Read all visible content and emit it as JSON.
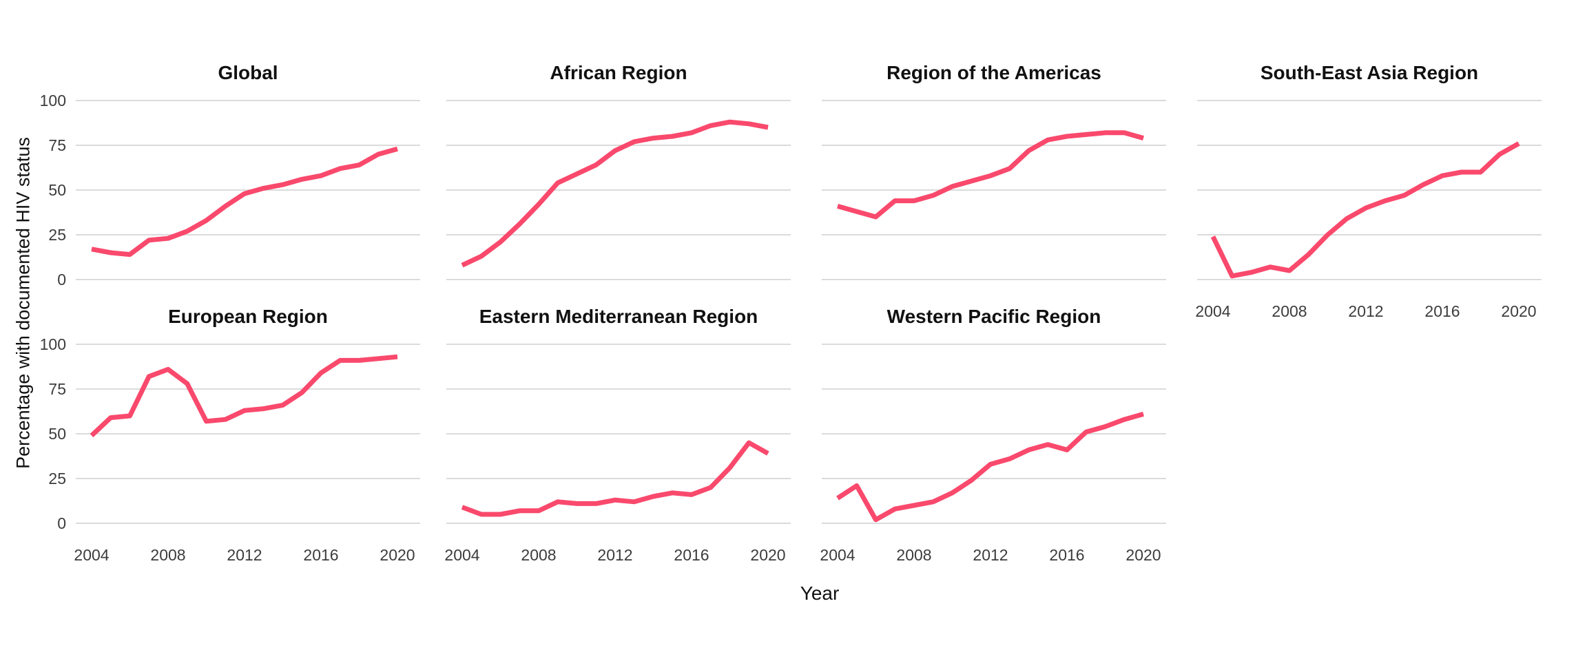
{
  "figure": {
    "background": "#ffffff"
  },
  "style": {
    "line_color": "#F9496C",
    "grid_color": "#DBDBDB",
    "title_color": "#111111",
    "tick_color": "#3c3c3c"
  },
  "axes": {
    "y_title": "Percentage with documented HIV status",
    "x_title": "Year",
    "y_ticks": [
      100,
      75,
      50,
      25,
      0
    ],
    "x_ticks": [
      2004,
      2008,
      2012,
      2016,
      2020
    ],
    "x_range": [
      2004,
      2020
    ],
    "y_range": [
      0,
      100
    ],
    "grid": "horizontal-only"
  },
  "chart_data": [
    {
      "type": "line",
      "title": "Global",
      "x": [
        2004,
        2005,
        2006,
        2007,
        2008,
        2009,
        2010,
        2011,
        2012,
        2013,
        2014,
        2015,
        2016,
        2017,
        2018,
        2019,
        2020
      ],
      "values": [
        17,
        15,
        14,
        22,
        23,
        27,
        33,
        41,
        48,
        51,
        53,
        56,
        58,
        62,
        64,
        70,
        73
      ]
    },
    {
      "type": "line",
      "title": "African Region",
      "x": [
        2004,
        2005,
        2006,
        2007,
        2008,
        2009,
        2010,
        2011,
        2012,
        2013,
        2014,
        2015,
        2016,
        2017,
        2018,
        2019,
        2020
      ],
      "values": [
        8,
        13,
        21,
        31,
        42,
        54,
        59,
        64,
        72,
        77,
        79,
        80,
        82,
        86,
        88,
        87,
        85
      ]
    },
    {
      "type": "line",
      "title": "Region of the Americas",
      "x": [
        2004,
        2005,
        2006,
        2007,
        2008,
        2009,
        2010,
        2011,
        2012,
        2013,
        2014,
        2015,
        2016,
        2017,
        2018,
        2019,
        2020
      ],
      "values": [
        41,
        38,
        35,
        44,
        44,
        47,
        52,
        55,
        58,
        62,
        72,
        78,
        80,
        81,
        82,
        82,
        79
      ]
    },
    {
      "type": "line",
      "title": "South-East Asia Region",
      "x": [
        2004,
        2005,
        2006,
        2007,
        2008,
        2009,
        2010,
        2011,
        2012,
        2013,
        2014,
        2015,
        2016,
        2017,
        2018,
        2019,
        2020
      ],
      "values": [
        24,
        2,
        4,
        7,
        5,
        14,
        25,
        34,
        40,
        44,
        47,
        53,
        58,
        60,
        60,
        70,
        76
      ]
    },
    {
      "type": "line",
      "title": "European Region",
      "x": [
        2004,
        2005,
        2006,
        2007,
        2008,
        2009,
        2010,
        2011,
        2012,
        2013,
        2014,
        2015,
        2016,
        2017,
        2018,
        2019,
        2020
      ],
      "values": [
        49,
        59,
        60,
        82,
        86,
        78,
        57,
        58,
        63,
        64,
        66,
        73,
        84,
        91,
        91,
        92,
        93
      ]
    },
    {
      "type": "line",
      "title": "Eastern Mediterranean Region",
      "x": [
        2004,
        2005,
        2006,
        2007,
        2008,
        2009,
        2010,
        2011,
        2012,
        2013,
        2014,
        2015,
        2016,
        2017,
        2018,
        2019,
        2020
      ],
      "values": [
        9,
        5,
        5,
        7,
        7,
        12,
        11,
        11,
        13,
        12,
        15,
        17,
        16,
        20,
        31,
        45,
        39
      ]
    },
    {
      "type": "line",
      "title": "Western Pacific Region",
      "x": [
        2004,
        2005,
        2006,
        2007,
        2008,
        2009,
        2010,
        2011,
        2012,
        2013,
        2014,
        2015,
        2016,
        2017,
        2018,
        2019,
        2020
      ],
      "values": [
        14,
        21,
        2,
        8,
        10,
        12,
        17,
        24,
        33,
        36,
        41,
        44,
        41,
        51,
        54,
        58,
        61
      ]
    }
  ],
  "layout": {
    "rows": 2,
    "cols": 4,
    "empty_cells": [
      "row2-col4"
    ]
  }
}
